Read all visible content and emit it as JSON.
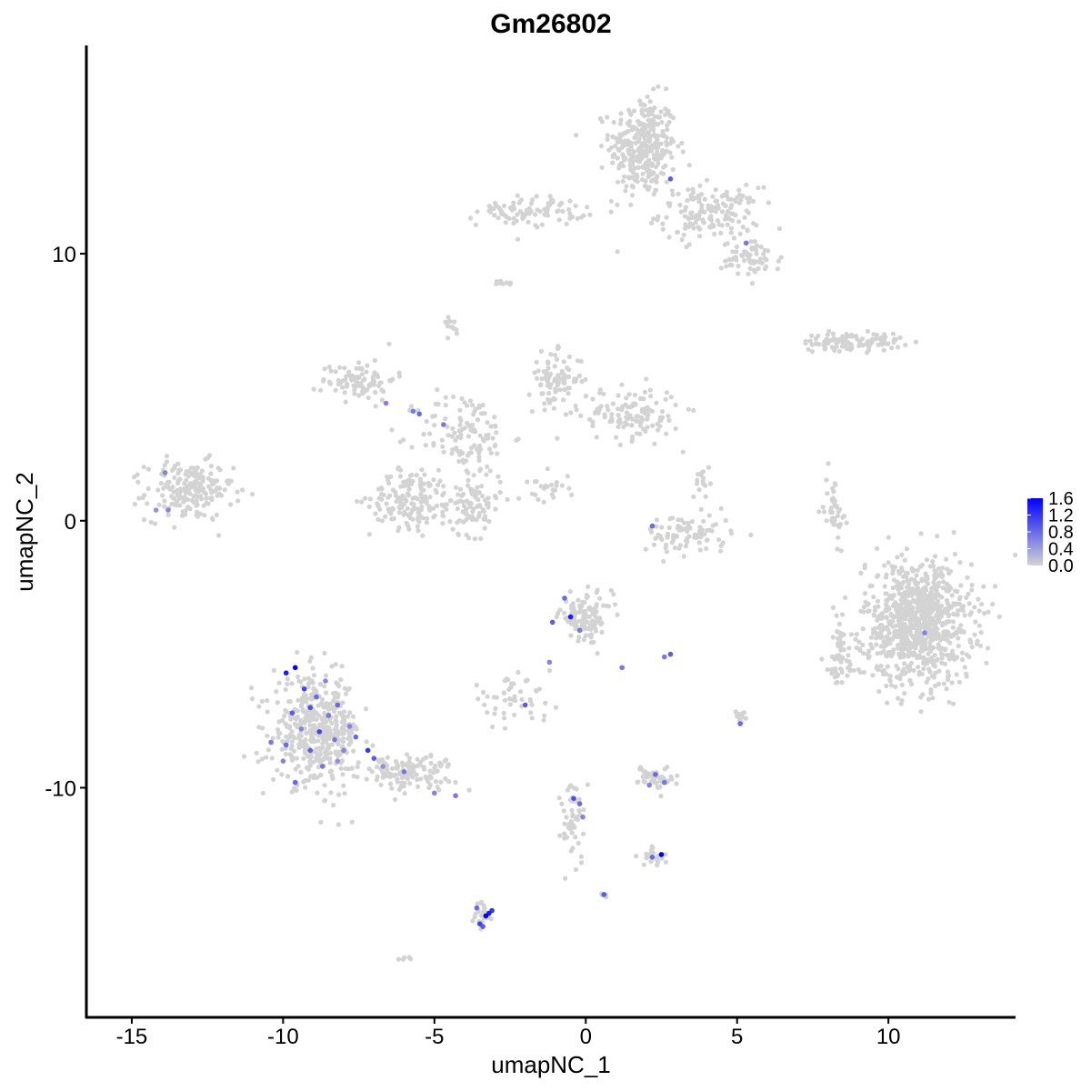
{
  "chart_data": {
    "type": "scatter",
    "title": "Gm26802",
    "xlabel": "umapNC_1",
    "ylabel": "umapNC_2",
    "xlim": [
      -16.5,
      14.2
    ],
    "ylim": [
      -18.6,
      17.8
    ],
    "x_ticks": [
      -15,
      -10,
      -5,
      0,
      5,
      10
    ],
    "x_tick_labels": [
      "-15",
      "-10",
      "-5",
      "0",
      "5",
      "10"
    ],
    "y_ticks": [
      -10,
      0,
      10
    ],
    "y_tick_labels": [
      "-10",
      "0",
      "10"
    ],
    "grid": false,
    "color_scale": {
      "low_color": "#d3d3d3",
      "high_color": "#0000ff",
      "min": 0.0,
      "max": 1.6,
      "labels": [
        "1.6",
        "1.2",
        "0.8",
        "0.4",
        "0.0"
      ],
      "label_values": [
        1.6,
        1.2,
        0.8,
        0.4,
        0.0
      ],
      "legend_position": "right"
    },
    "clusters": [
      {
        "center": [
          1.9,
          14.0
        ],
        "spread": [
          1.0,
          1.7
        ],
        "n": 320,
        "shape": "blob"
      },
      {
        "center": [
          4.1,
          11.5
        ],
        "spread": [
          1.5,
          0.9
        ],
        "n": 160,
        "shape": "blob"
      },
      {
        "center": [
          5.5,
          9.8
        ],
        "spread": [
          0.9,
          0.6
        ],
        "n": 60,
        "shape": "blob"
      },
      {
        "center": [
          -1.8,
          11.6
        ],
        "spread": [
          1.6,
          0.5
        ],
        "n": 90,
        "shape": "blob"
      },
      {
        "center": [
          -13.1,
          1.1
        ],
        "spread": [
          1.3,
          1.0
        ],
        "n": 200,
        "shape": "blob"
      },
      {
        "center": [
          -7.5,
          5.3
        ],
        "spread": [
          1.1,
          0.7
        ],
        "n": 90,
        "shape": "blob"
      },
      {
        "center": [
          -4.0,
          3.2
        ],
        "spread": [
          1.4,
          1.5
        ],
        "n": 120,
        "shape": "blob"
      },
      {
        "center": [
          -5.8,
          0.8
        ],
        "spread": [
          1.2,
          1.0
        ],
        "n": 150,
        "shape": "blob"
      },
      {
        "center": [
          -3.8,
          0.6
        ],
        "spread": [
          0.9,
          1.0
        ],
        "n": 100,
        "shape": "blob"
      },
      {
        "center": [
          -1.0,
          5.3
        ],
        "spread": [
          0.8,
          0.9
        ],
        "n": 90,
        "shape": "blob"
      },
      {
        "center": [
          1.5,
          4.0
        ],
        "spread": [
          1.5,
          0.9
        ],
        "n": 130,
        "shape": "blob"
      },
      {
        "center": [
          3.4,
          -0.5
        ],
        "spread": [
          1.3,
          0.7
        ],
        "n": 90,
        "shape": "blob"
      },
      {
        "center": [
          8.8,
          6.7
        ],
        "spread": [
          1.5,
          0.3
        ],
        "n": 110,
        "shape": "blob"
      },
      {
        "center": [
          8.2,
          0.5
        ],
        "spread": [
          0.3,
          1.2
        ],
        "n": 45,
        "shape": "blob"
      },
      {
        "center": [
          11.0,
          -3.8
        ],
        "spread": [
          1.6,
          2.1
        ],
        "n": 900,
        "shape": "blob"
      },
      {
        "center": [
          8.4,
          -5.2
        ],
        "spread": [
          0.5,
          1.2
        ],
        "n": 60,
        "shape": "blob"
      },
      {
        "center": [
          0.0,
          -3.6
        ],
        "spread": [
          0.8,
          0.8
        ],
        "n": 110,
        "shape": "blob"
      },
      {
        "center": [
          -2.5,
          -6.7
        ],
        "spread": [
          1.3,
          0.7
        ],
        "n": 50,
        "shape": "blob"
      },
      {
        "center": [
          -8.9,
          -7.9
        ],
        "spread": [
          1.3,
          1.8
        ],
        "n": 450,
        "shape": "blob"
      },
      {
        "center": [
          -6.0,
          -9.4
        ],
        "spread": [
          1.5,
          0.6
        ],
        "n": 130,
        "shape": "blob"
      },
      {
        "center": [
          2.3,
          -9.6
        ],
        "spread": [
          0.5,
          0.4
        ],
        "n": 50,
        "shape": "blob"
      },
      {
        "center": [
          -0.4,
          -11.2
        ],
        "spread": [
          0.4,
          1.5
        ],
        "n": 50,
        "shape": "blob"
      },
      {
        "center": [
          2.2,
          -12.6
        ],
        "spread": [
          0.4,
          0.3
        ],
        "n": 25,
        "shape": "blob"
      },
      {
        "center": [
          -3.4,
          -14.8
        ],
        "spread": [
          0.3,
          0.5
        ],
        "n": 25,
        "shape": "blob"
      },
      {
        "center": [
          5.1,
          -7.3
        ],
        "spread": [
          0.2,
          0.3
        ],
        "n": 12,
        "shape": "blob"
      },
      {
        "center": [
          -4.4,
          7.3
        ],
        "spread": [
          0.2,
          0.3
        ],
        "n": 12,
        "shape": "blob"
      },
      {
        "center": [
          -2.7,
          8.9
        ],
        "spread": [
          0.2,
          0.1
        ],
        "n": 10,
        "shape": "blob"
      },
      {
        "center": [
          0.6,
          -14.0
        ],
        "spread": [
          0.1,
          0.1
        ],
        "n": 4,
        "shape": "blob"
      },
      {
        "center": [
          -6.0,
          -16.4
        ],
        "spread": [
          0.2,
          0.1
        ],
        "n": 5,
        "shape": "blob"
      },
      {
        "center": [
          -1.2,
          1.2
        ],
        "spread": [
          0.7,
          0.5
        ],
        "n": 25,
        "shape": "blob"
      },
      {
        "center": [
          3.8,
          1.5
        ],
        "spread": [
          0.3,
          0.6
        ],
        "n": 15,
        "shape": "blob"
      }
    ],
    "expressing_cells": [
      {
        "x": -9.6,
        "y": -5.5,
        "v": 1.6
      },
      {
        "x": -9.9,
        "y": -5.7,
        "v": 1.4
      },
      {
        "x": -9.3,
        "y": -6.3,
        "v": 1.1
      },
      {
        "x": -8.9,
        "y": -6.6,
        "v": 0.8
      },
      {
        "x": -9.1,
        "y": -7.0,
        "v": 1.0
      },
      {
        "x": -8.5,
        "y": -7.3,
        "v": 0.7
      },
      {
        "x": -9.7,
        "y": -7.2,
        "v": 0.9
      },
      {
        "x": -9.4,
        "y": -7.8,
        "v": 0.6
      },
      {
        "x": -8.8,
        "y": -7.9,
        "v": 1.1
      },
      {
        "x": -8.3,
        "y": -8.2,
        "v": 0.7
      },
      {
        "x": -9.9,
        "y": -8.4,
        "v": 0.8
      },
      {
        "x": -9.1,
        "y": -8.6,
        "v": 0.9
      },
      {
        "x": -8.0,
        "y": -8.6,
        "v": 0.6
      },
      {
        "x": -7.6,
        "y": -8.1,
        "v": 0.8
      },
      {
        "x": -7.2,
        "y": -8.6,
        "v": 1.2
      },
      {
        "x": -7.0,
        "y": -8.9,
        "v": 0.9
      },
      {
        "x": -10.0,
        "y": -9.0,
        "v": 0.6
      },
      {
        "x": -9.6,
        "y": -9.8,
        "v": 0.8
      },
      {
        "x": -8.7,
        "y": -9.2,
        "v": 0.7
      },
      {
        "x": -8.2,
        "y": -9.0,
        "v": 0.5
      },
      {
        "x": -10.4,
        "y": -8.3,
        "v": 0.7
      },
      {
        "x": -8.6,
        "y": -6.0,
        "v": 0.6
      },
      {
        "x": -8.2,
        "y": -6.9,
        "v": 0.8
      },
      {
        "x": -7.8,
        "y": -7.7,
        "v": 0.6
      },
      {
        "x": -6.0,
        "y": -9.4,
        "v": 0.7
      },
      {
        "x": -5.0,
        "y": -10.2,
        "v": 0.6
      },
      {
        "x": -4.3,
        "y": -10.3,
        "v": 0.7
      },
      {
        "x": -6.7,
        "y": -9.2,
        "v": 0.5
      },
      {
        "x": -5.7,
        "y": 4.1,
        "v": 0.7
      },
      {
        "x": -5.5,
        "y": 4.0,
        "v": 0.8
      },
      {
        "x": -6.6,
        "y": 4.4,
        "v": 0.6
      },
      {
        "x": -4.7,
        "y": 3.6,
        "v": 0.7
      },
      {
        "x": -13.9,
        "y": 1.8,
        "v": 0.6
      },
      {
        "x": -14.2,
        "y": 0.4,
        "v": 0.5
      },
      {
        "x": -13.8,
        "y": 0.4,
        "v": 0.6
      },
      {
        "x": 2.8,
        "y": 12.8,
        "v": 0.9
      },
      {
        "x": 5.3,
        "y": 10.4,
        "v": 0.7
      },
      {
        "x": 2.2,
        "y": -0.2,
        "v": 0.8
      },
      {
        "x": -0.5,
        "y": -3.6,
        "v": 1.4
      },
      {
        "x": -0.7,
        "y": -2.9,
        "v": 0.8
      },
      {
        "x": -1.1,
        "y": -3.8,
        "v": 0.9
      },
      {
        "x": -0.2,
        "y": -4.1,
        "v": 0.7
      },
      {
        "x": -1.2,
        "y": -5.3,
        "v": 0.6
      },
      {
        "x": 1.2,
        "y": -5.5,
        "v": 0.7
      },
      {
        "x": 2.8,
        "y": -5.0,
        "v": 0.9
      },
      {
        "x": 2.6,
        "y": -5.1,
        "v": 0.7
      },
      {
        "x": 11.2,
        "y": -4.2,
        "v": 0.6
      },
      {
        "x": 5.1,
        "y": -7.6,
        "v": 0.8
      },
      {
        "x": -2.0,
        "y": -6.9,
        "v": 0.9
      },
      {
        "x": 2.3,
        "y": -9.5,
        "v": 0.8
      },
      {
        "x": 2.6,
        "y": -9.8,
        "v": 0.7
      },
      {
        "x": 2.1,
        "y": -9.9,
        "v": 0.6
      },
      {
        "x": -0.4,
        "y": -10.4,
        "v": 1.0
      },
      {
        "x": -0.2,
        "y": -10.6,
        "v": 0.8
      },
      {
        "x": -0.1,
        "y": -11.1,
        "v": 0.6
      },
      {
        "x": 2.5,
        "y": -12.5,
        "v": 1.6
      },
      {
        "x": 2.2,
        "y": -12.6,
        "v": 0.8
      },
      {
        "x": 0.6,
        "y": -14.0,
        "v": 0.9
      },
      {
        "x": -3.3,
        "y": -14.8,
        "v": 1.6
      },
      {
        "x": -3.2,
        "y": -14.7,
        "v": 1.4
      },
      {
        "x": -3.5,
        "y": -15.1,
        "v": 1.1
      },
      {
        "x": -3.6,
        "y": -14.5,
        "v": 0.8
      },
      {
        "x": -3.4,
        "y": -15.2,
        "v": 0.9
      },
      {
        "x": -3.1,
        "y": -14.6,
        "v": 1.2
      }
    ]
  }
}
